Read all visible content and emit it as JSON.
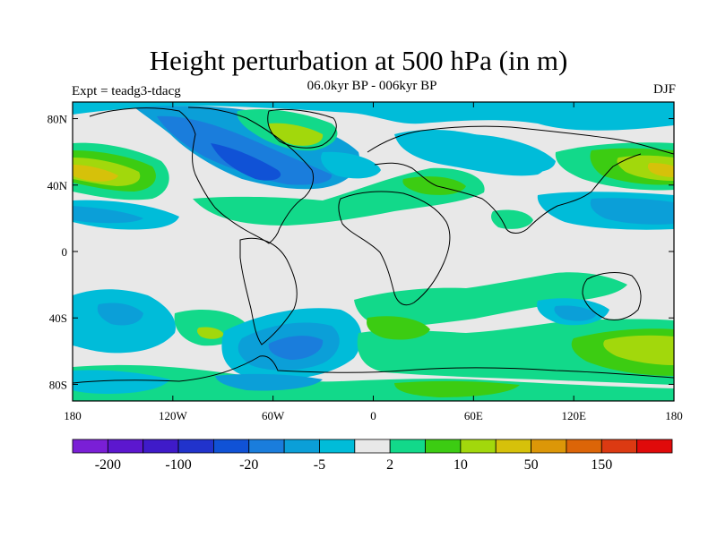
{
  "header": {
    "title": "Height perturbation at 500 hPa (in m)",
    "subtitle": "06.0kyr BP - 006kyr BP",
    "left_label": "Expt = teadg3-tdacg",
    "right_label": "DJF"
  },
  "axes": {
    "lat_labels": [
      {
        "text": "80N",
        "lat": 80
      },
      {
        "text": "40N",
        "lat": 40
      },
      {
        "text": "0",
        "lat": 0
      },
      {
        "text": "40S",
        "lat": -40
      },
      {
        "text": "80S",
        "lat": -80
      }
    ],
    "lon_labels": [
      {
        "text": "180",
        "lon": -180
      },
      {
        "text": "120W",
        "lon": -120
      },
      {
        "text": "60W",
        "lon": -60
      },
      {
        "text": "0",
        "lon": 0
      },
      {
        "text": "60E",
        "lon": 60
      },
      {
        "text": "120E",
        "lon": 120
      },
      {
        "text": "180",
        "lon": 180
      }
    ]
  },
  "colorbar": {
    "colors": [
      "#7a1fd6",
      "#5c17cf",
      "#3f1bc9",
      "#2133cc",
      "#1052d6",
      "#1a7ddc",
      "#0b9fd8",
      "#00bcd9",
      "#e8e8e8",
      "#12d98a",
      "#3ccc12",
      "#a2d80c",
      "#d6c10a",
      "#dc9708",
      "#dc6508",
      "#dc3a12",
      "#e00a0a"
    ],
    "labels": [
      {
        "text": "-200",
        "boundary": 1
      },
      {
        "text": "-100",
        "boundary": 3
      },
      {
        "text": "-20",
        "boundary": 5
      },
      {
        "text": "-5",
        "boundary": 7
      },
      {
        "text": "2",
        "boundary": 9
      },
      {
        "text": "10",
        "boundary": 11
      },
      {
        "text": "50",
        "boundary": 13
      },
      {
        "text": "150",
        "boundary": 15
      }
    ]
  },
  "colors": {
    "neutral": "#e8e8e8",
    "green": "#12d98a",
    "lightgreen": "#3ccc12",
    "yellowgreen": "#a2d80c",
    "yellow": "#d6c10a",
    "cyan": "#00bcd9",
    "lightblue": "#0b9fd8",
    "blue": "#1a7ddc",
    "darkblue": "#1052d6"
  }
}
